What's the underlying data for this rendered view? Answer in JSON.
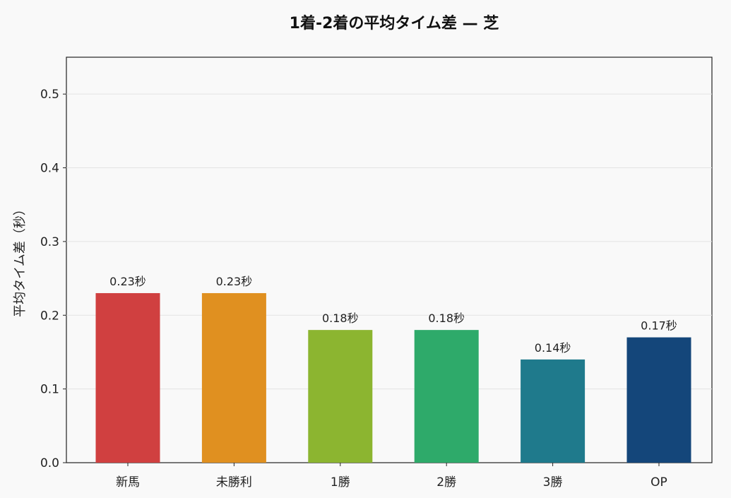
{
  "chart_data": {
    "type": "bar",
    "title": "1着-2着の平均タイム差 — 芝",
    "xlabel": "",
    "ylabel": "平均タイム差（秒）",
    "categories": [
      "新馬",
      "未勝利",
      "1勝",
      "2勝",
      "3勝",
      "OP"
    ],
    "values": [
      0.23,
      0.23,
      0.18,
      0.18,
      0.14,
      0.17
    ],
    "data_labels": [
      "0.23秒",
      "0.23秒",
      "0.18秒",
      "0.18秒",
      "0.14秒",
      "0.17秒"
    ],
    "colors": [
      "#d04040",
      "#e09020",
      "#8cb530",
      "#2eaa6a",
      "#1f7a8c",
      "#14467a"
    ],
    "ylim": [
      0,
      0.55
    ],
    "yticks": [
      0.0,
      0.1,
      0.2,
      0.3,
      0.4,
      0.5
    ],
    "ytick_labels": [
      "0.0",
      "0.1",
      "0.2",
      "0.3",
      "0.4",
      "0.5"
    ],
    "grid": true,
    "legend": "none"
  }
}
